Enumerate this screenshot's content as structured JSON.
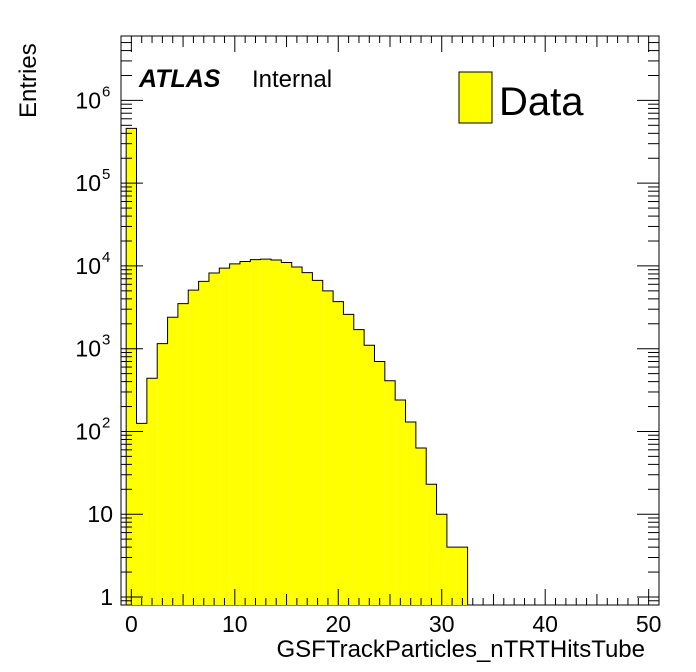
{
  "chart_data": {
    "type": "histogram",
    "xlabel": "GSFTrackParticles_nTRTHitsTube",
    "ylabel": "Entries",
    "xlim": [
      -1,
      51
    ],
    "ylim": [
      0.8,
      6000000
    ],
    "yscale": "log",
    "grid": false,
    "legend_position": "top-right",
    "atlas_label": "ATLAS",
    "atlas_status": "Internal",
    "x_ticks": [
      {
        "value": 0,
        "label": "0"
      },
      {
        "value": 10,
        "label": "10"
      },
      {
        "value": 20,
        "label": "20"
      },
      {
        "value": 30,
        "label": "30"
      },
      {
        "value": 40,
        "label": "40"
      },
      {
        "value": 50,
        "label": "50"
      }
    ],
    "y_ticks": [
      {
        "value": 1,
        "base": "1",
        "exp": ""
      },
      {
        "value": 10,
        "base": "10",
        "exp": ""
      },
      {
        "value": 100,
        "base": "10",
        "exp": "2"
      },
      {
        "value": 1000,
        "base": "10",
        "exp": "3"
      },
      {
        "value": 10000,
        "base": "10",
        "exp": "4"
      },
      {
        "value": 100000,
        "base": "10",
        "exp": "5"
      },
      {
        "value": 1000000,
        "base": "10",
        "exp": "6"
      }
    ],
    "bin_width": 1,
    "bin_low_edges": [
      -0.5,
      0.5,
      1.5,
      2.5,
      3.5,
      4.5,
      5.5,
      6.5,
      7.5,
      8.5,
      9.5,
      10.5,
      11.5,
      12.5,
      13.5,
      14.5,
      15.5,
      16.5,
      17.5,
      18.5,
      19.5,
      20.5,
      21.5,
      22.5,
      23.5,
      24.5,
      25.5,
      26.5,
      27.5,
      28.5,
      29.5,
      30.5,
      31.5
    ],
    "series": [
      {
        "name": "Data",
        "color": "#ffff00",
        "values": [
          460000,
          125,
          440,
          1150,
          2400,
          3500,
          5100,
          6500,
          8200,
          9400,
          10600,
          11300,
          11900,
          12100,
          11800,
          11000,
          9700,
          8300,
          6700,
          5000,
          3700,
          2600,
          1700,
          1100,
          700,
          410,
          240,
          130,
          63,
          23,
          10,
          4,
          4
        ]
      }
    ]
  }
}
